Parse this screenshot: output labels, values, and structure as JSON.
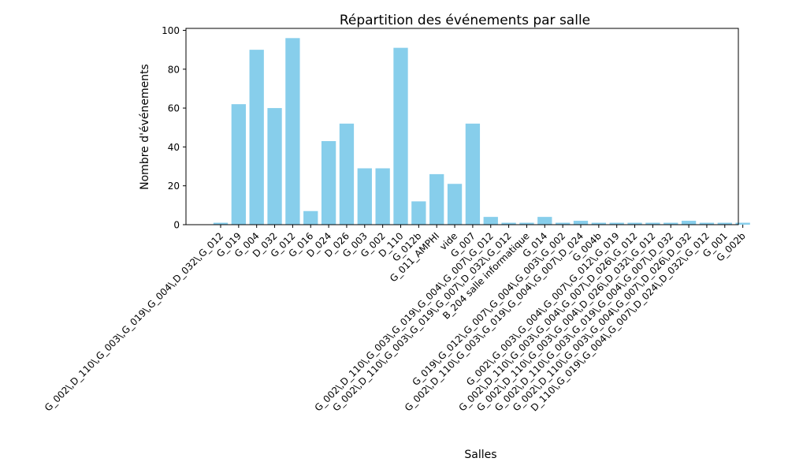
{
  "chart_data": {
    "type": "bar",
    "title": "Répartition des événements par salle",
    "xlabel": "Salles",
    "ylabel": "Nombre d'événements",
    "ylim": [
      0,
      101
    ],
    "yticks": [
      0,
      20,
      40,
      60,
      80,
      100
    ],
    "bar_color": "#87ceeb",
    "grid": false,
    "categories": [
      "G_002\\,D_110\\,G_003\\,G_019\\,G_004\\,D_032\\,G_012",
      "G_019",
      "G_004",
      "D_032",
      "G_012",
      "G_016",
      "D_024",
      "D_026",
      "G_003",
      "G_002",
      "D_110",
      "G_012b",
      "G_011_AMPHI",
      "vide",
      "G_007",
      "G_002\\,D_110\\,G_003\\,G_019\\,G_004\\,G_007\\,G_012",
      "G_002\\,D_110\\,G_003\\,G_019\\,G_007\\,D_032\\,G_012",
      "B_204 salle informatique",
      "G_014",
      "G_019\\,G_012\\,G_007\\,G_004\\,G_003\\,G_002",
      "G_002\\,D_110\\,G_003\\,G_019\\,G_004\\,G_007\\,D_024",
      "G_004b",
      "G_002\\,G_003\\,G_004\\,G_007\\,G_012\\,G_019",
      "G_002\\,D_110\\,G_003\\,G_004\\,G_007\\,D_026\\,G_012",
      "G_002\\,D_110\\,G_003\\,G_004\\,D_026\\,D_032\\,G_012",
      "G_002\\,D_110\\,G_003\\,G_019\\,G_004\\,G_007\\,D_032",
      "G_002\\,D_110\\,G_003\\,G_004\\,G_007\\,D_026\\,D_032",
      "D_110\\,G_019\\,G_004\\,G_007\\,D_024\\,D_032\\,G_012",
      "G_001",
      "G_002b"
    ],
    "values": [
      1,
      62,
      90,
      60,
      96,
      7,
      43,
      52,
      29,
      29,
      91,
      12,
      26,
      21,
      52,
      4,
      1,
      1,
      4,
      1,
      2,
      1,
      1,
      1,
      1,
      1,
      2,
      1,
      1,
      1
    ]
  }
}
